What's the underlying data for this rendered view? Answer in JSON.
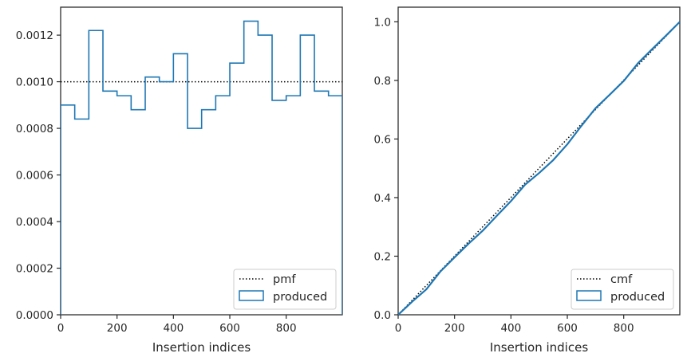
{
  "chart_data": [
    {
      "type": "histogram-step",
      "xlabel": "Insertion indices",
      "ylabel": "",
      "xlim": [
        0,
        999
      ],
      "ylim": [
        0,
        0.00132
      ],
      "xticks": [
        0,
        200,
        400,
        600,
        800
      ],
      "xtick_labels": [
        "0",
        "200",
        "400",
        "600",
        "800"
      ],
      "yticks": [
        0,
        0.0002,
        0.0004,
        0.0006,
        0.0008,
        0.001,
        0.0012
      ],
      "ytick_labels": [
        "0.0000",
        "0.0002",
        "0.0004",
        "0.0006",
        "0.0008",
        "0.0010",
        "0.0012"
      ],
      "legend_position": "lower right",
      "reference": {
        "name": "pmf",
        "y": 0.001,
        "style": "dotted",
        "color": "#000000"
      },
      "series": [
        {
          "name": "produced",
          "color": "#1f77b4",
          "bin_edges": [
            0,
            50,
            100,
            150,
            200,
            250,
            300,
            350,
            400,
            450,
            500,
            550,
            600,
            650,
            700,
            750,
            800,
            850,
            900,
            950,
            999
          ],
          "values": [
            0.0009,
            0.00084,
            0.00122,
            0.00096,
            0.00094,
            0.00088,
            0.00102,
            0.001,
            0.00112,
            0.0008,
            0.00088,
            0.00094,
            0.00108,
            0.00126,
            0.0012,
            0.00092,
            0.00094,
            0.0012,
            0.00096,
            0.00094
          ]
        }
      ]
    },
    {
      "type": "line-step",
      "xlabel": "Insertion indices",
      "ylabel": "",
      "xlim": [
        0,
        999
      ],
      "ylim": [
        0,
        1.05
      ],
      "xticks": [
        0,
        200,
        400,
        600,
        800
      ],
      "xtick_labels": [
        "0",
        "200",
        "400",
        "600",
        "800"
      ],
      "yticks": [
        0,
        0.2,
        0.4,
        0.6,
        0.8,
        1.0
      ],
      "ytick_labels": [
        "0.0",
        "0.2",
        "0.4",
        "0.6",
        "0.8",
        "1.0"
      ],
      "legend_position": "lower right",
      "reference": {
        "name": "cmf",
        "x": [
          0,
          999
        ],
        "y": [
          0,
          1.0
        ],
        "style": "dotted",
        "color": "#000000"
      },
      "series": [
        {
          "name": "produced",
          "color": "#1f77b4",
          "x": [
            0,
            50,
            100,
            150,
            200,
            250,
            300,
            350,
            400,
            450,
            500,
            550,
            600,
            650,
            700,
            750,
            800,
            850,
            900,
            950,
            999
          ],
          "y": [
            0,
            0.045,
            0.087,
            0.148,
            0.196,
            0.243,
            0.287,
            0.338,
            0.388,
            0.444,
            0.484,
            0.528,
            0.582,
            0.645,
            0.705,
            0.751,
            0.798,
            0.858,
            0.906,
            0.953,
            1.0
          ]
        }
      ]
    }
  ]
}
